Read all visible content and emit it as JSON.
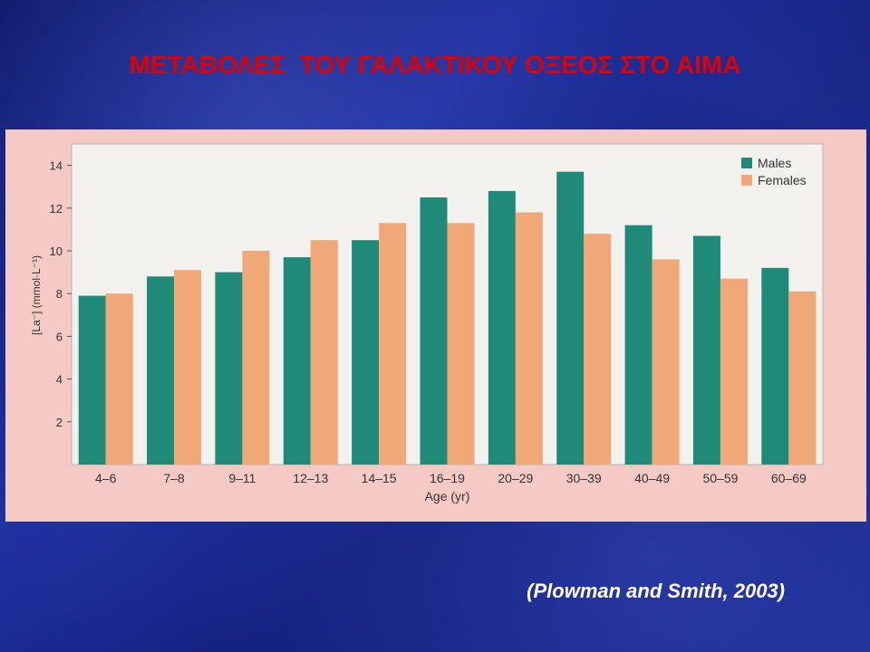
{
  "slide": {
    "title": "ΜΕΤΑΒΟΛΕΣ  ΤΟΥ ΓΑΛΑΚΤΙΚΟΥ ΟΞΕΟΣ ΣΤΟ ΑΙΜΑ",
    "citation": "(Plowman and Smith, 2003)"
  },
  "colors": {
    "males": "#1f8a78",
    "females": "#f0a878",
    "plot_background": "#f2f1ee",
    "figure_background": "#f5c9c4"
  },
  "chart_data": {
    "type": "bar",
    "title": "",
    "xlabel": "Age (yr)",
    "ylabel": "[La⁻] (mmol·L⁻¹)",
    "ylim": [
      0,
      15
    ],
    "yticks": [
      2,
      4,
      6,
      8,
      10,
      12,
      14
    ],
    "grid": false,
    "legend_position": "top-right",
    "categories": [
      "4–6",
      "7–8",
      "9–11",
      "12–13",
      "14–15",
      "16–19",
      "20–29",
      "30–39",
      "40–49",
      "50–59",
      "60–69"
    ],
    "series": [
      {
        "name": "Males",
        "values": [
          7.9,
          8.8,
          9.0,
          9.7,
          10.5,
          12.5,
          12.8,
          13.7,
          11.2,
          10.7,
          9.2
        ]
      },
      {
        "name": "Females",
        "values": [
          8.0,
          9.1,
          10.0,
          10.5,
          11.3,
          11.3,
          11.8,
          10.8,
          9.6,
          8.7,
          8.1
        ]
      }
    ]
  }
}
